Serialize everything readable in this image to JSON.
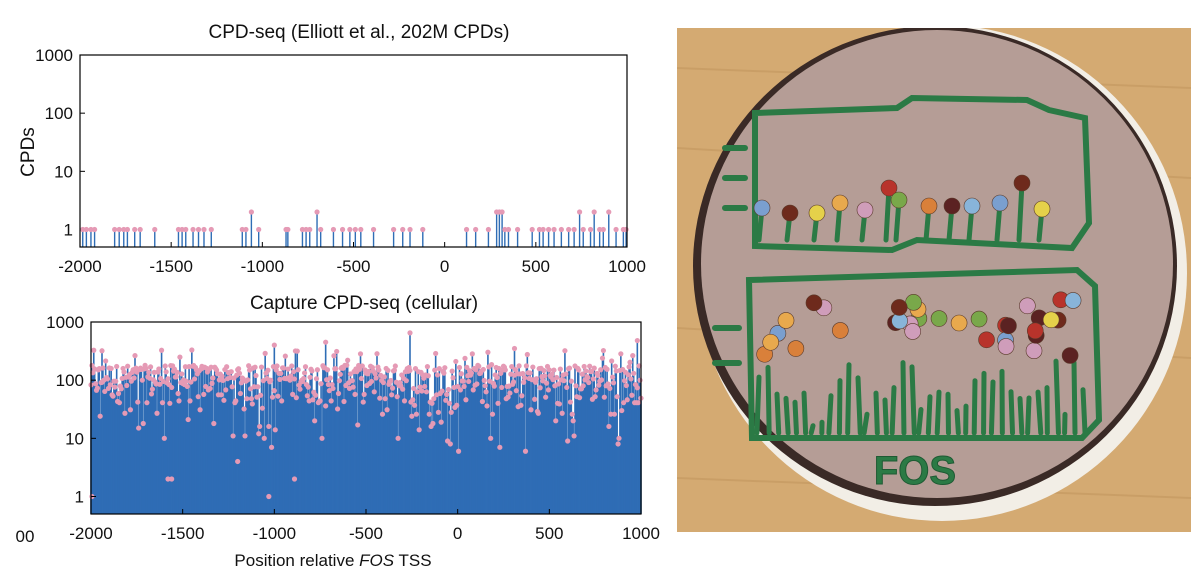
{
  "chart_data": [
    {
      "type": "stem",
      "title": "CPD-seq (Elliott et al., 202M CPDs)",
      "ylabel": "CPDs",
      "xlabel": "",
      "xlim": [
        -2000,
        1000
      ],
      "ylim": [
        0.5,
        1000
      ],
      "yscale": "log",
      "x_ticks": [
        "-2000",
        "-1500",
        "-1000",
        "-500",
        "0",
        "500",
        "1000"
      ],
      "y_ticks": [
        "1",
        "10",
        "100",
        "1000"
      ],
      "colors": {
        "stem": "#2f6db5",
        "marker": "#e59ab5",
        "axis": "#000000"
      },
      "points": [
        {
          "x": -1985,
          "y": 1
        },
        {
          "x": -1965,
          "y": 1
        },
        {
          "x": -1940,
          "y": 1
        },
        {
          "x": -1920,
          "y": 1
        },
        {
          "x": -1810,
          "y": 1
        },
        {
          "x": -1785,
          "y": 1
        },
        {
          "x": -1760,
          "y": 1
        },
        {
          "x": -1740,
          "y": 1
        },
        {
          "x": -1700,
          "y": 1
        },
        {
          "x": -1670,
          "y": 1
        },
        {
          "x": -1590,
          "y": 1
        },
        {
          "x": -1460,
          "y": 1
        },
        {
          "x": -1440,
          "y": 1
        },
        {
          "x": -1420,
          "y": 1
        },
        {
          "x": -1380,
          "y": 1
        },
        {
          "x": -1350,
          "y": 1
        },
        {
          "x": -1320,
          "y": 1
        },
        {
          "x": -1280,
          "y": 1
        },
        {
          "x": -1110,
          "y": 1
        },
        {
          "x": -1090,
          "y": 1
        },
        {
          "x": -1060,
          "y": 2
        },
        {
          "x": -1020,
          "y": 1
        },
        {
          "x": -870,
          "y": 1
        },
        {
          "x": -860,
          "y": 1
        },
        {
          "x": -780,
          "y": 1
        },
        {
          "x": -760,
          "y": 1
        },
        {
          "x": -740,
          "y": 1
        },
        {
          "x": -700,
          "y": 2
        },
        {
          "x": -680,
          "y": 1
        },
        {
          "x": -610,
          "y": 1
        },
        {
          "x": -560,
          "y": 1
        },
        {
          "x": -520,
          "y": 1
        },
        {
          "x": -490,
          "y": 1
        },
        {
          "x": -460,
          "y": 1
        },
        {
          "x": -390,
          "y": 1
        },
        {
          "x": -280,
          "y": 1
        },
        {
          "x": -230,
          "y": 1
        },
        {
          "x": -190,
          "y": 1
        },
        {
          "x": -120,
          "y": 1
        },
        {
          "x": 120,
          "y": 1
        },
        {
          "x": 170,
          "y": 1
        },
        {
          "x": 240,
          "y": 1
        },
        {
          "x": 285,
          "y": 2
        },
        {
          "x": 300,
          "y": 2
        },
        {
          "x": 315,
          "y": 2
        },
        {
          "x": 330,
          "y": 1
        },
        {
          "x": 350,
          "y": 1
        },
        {
          "x": 400,
          "y": 1
        },
        {
          "x": 480,
          "y": 1
        },
        {
          "x": 520,
          "y": 1
        },
        {
          "x": 540,
          "y": 1
        },
        {
          "x": 570,
          "y": 1
        },
        {
          "x": 600,
          "y": 1
        },
        {
          "x": 640,
          "y": 1
        },
        {
          "x": 680,
          "y": 1
        },
        {
          "x": 710,
          "y": 1
        },
        {
          "x": 740,
          "y": 2
        },
        {
          "x": 760,
          "y": 1
        },
        {
          "x": 800,
          "y": 1
        },
        {
          "x": 820,
          "y": 2
        },
        {
          "x": 850,
          "y": 1
        },
        {
          "x": 870,
          "y": 1
        },
        {
          "x": 900,
          "y": 2
        },
        {
          "x": 940,
          "y": 1
        },
        {
          "x": 980,
          "y": 1
        },
        {
          "x": 995,
          "y": 1
        }
      ]
    },
    {
      "type": "stem",
      "title": "Capture CPD-seq (cellular)",
      "ylabel": "",
      "xlabel": "Position relative FOS TSS",
      "xlabel_parts": [
        "Position relative ",
        "FOS",
        " TSS"
      ],
      "xlim": [
        -2000,
        1000
      ],
      "ylim": [
        0.5,
        1000
      ],
      "yscale": "log",
      "x_ticks": [
        "-2000",
        "-1500",
        "-1000",
        "-500",
        "0",
        "500",
        "1000"
      ],
      "y_ticks": [
        "1",
        "10",
        "100",
        "1000"
      ],
      "truncated_tick": "00",
      "colors": {
        "stem": "#2f6db5",
        "marker": "#e59ab5",
        "axis": "#000000"
      },
      "generator": {
        "step": 5,
        "typical_level": 110,
        "notable_points": [
          {
            "x": -1995,
            "y": 1
          },
          {
            "x": -1030,
            "y": 1
          },
          {
            "x": -1580,
            "y": 2
          },
          {
            "x": -1560,
            "y": 2
          },
          {
            "x": -890,
            "y": 2
          },
          {
            "x": -1200,
            "y": 4
          },
          {
            "x": -260,
            "y": 650
          },
          {
            "x": -720,
            "y": 450
          },
          {
            "x": -1000,
            "y": 400
          },
          {
            "x": 980,
            "y": 480
          },
          {
            "x": -1940,
            "y": 320
          },
          {
            "x": 310,
            "y": 350
          }
        ]
      }
    }
  ],
  "photo": {
    "caption_text": "FOS",
    "colors": {
      "table": "#d4aa72",
      "plate": "#f2eee6",
      "frosting": "#b59d96",
      "rim": "#3a2a26",
      "licorice": "#2b7a45"
    },
    "candy_colors": [
      "#7a9fcf",
      "#6e2a1c",
      "#e5d14a",
      "#e8a94d",
      "#cf9dba",
      "#b8332b",
      "#79a84a",
      "#d9803a",
      "#5b2222",
      "#88b4d9"
    ]
  }
}
